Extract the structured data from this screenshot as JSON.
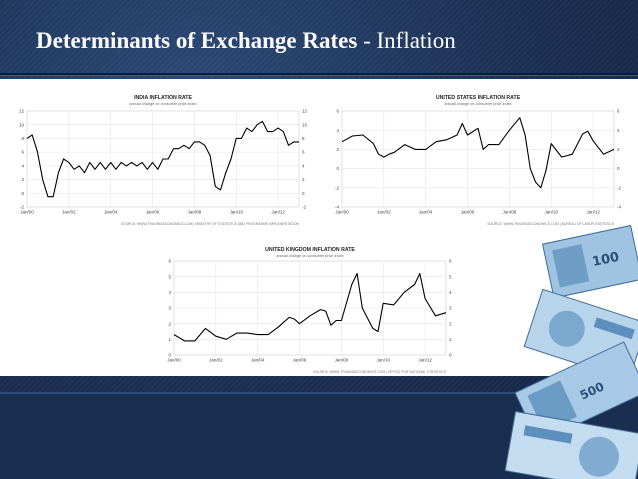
{
  "slide": {
    "title_main": "Determinants of Exchange Rates",
    "title_sep": " - ",
    "title_sub": "Inflation"
  },
  "colors": {
    "background": "#1b2f52",
    "title": "#ffffff",
    "line": "#000000",
    "grid": "#dddddd"
  },
  "decoration": {
    "image": "banknotes-image"
  },
  "chart_data": [
    {
      "type": "line",
      "title": "INDIA INFLATION RATE",
      "subtitle": "annual change on consumer price index",
      "source": "SOURCE: WWW.TRADINGECONOMICS.COM | MINISTRY OF STATISTICS AND PROGRAMME IMPLEMENTATION",
      "ylim": [
        -2,
        12
      ],
      "yticks": [
        "12",
        "10",
        "8",
        "6",
        "4",
        "2",
        "0",
        "-2"
      ],
      "xticks": [
        "Jan/00",
        "Jan/02",
        "Jan/04",
        "Jan/06",
        "Jan/08",
        "Jan/10",
        "Jan/12"
      ],
      "grid": true,
      "series": [
        {
          "x": [
            2000.0,
            2000.25,
            2000.5,
            2000.75,
            2001.0,
            2001.25,
            2001.5,
            2001.75,
            2002.0,
            2002.25,
            2002.5,
            2002.75,
            2003.0,
            2003.25,
            2003.5,
            2003.75,
            2004.0,
            2004.25,
            2004.5,
            2004.75,
            2005.0,
            2005.25,
            2005.5,
            2005.75,
            2006.0,
            2006.25,
            2006.5,
            2006.75,
            2007.0,
            2007.25,
            2007.5,
            2007.75,
            2008.0,
            2008.25,
            2008.5,
            2008.75,
            2009.0,
            2009.25,
            2009.5,
            2009.75,
            2010.0,
            2010.25,
            2010.5,
            2010.75,
            2011.0,
            2011.25,
            2011.5,
            2011.75,
            2012.0,
            2012.25,
            2012.5,
            2012.75,
            2013.0
          ],
          "values": [
            8,
            8.5,
            6,
            2,
            -0.5,
            -0.5,
            3,
            5,
            4.5,
            3.5,
            4,
            3,
            4.5,
            3.5,
            4.5,
            3.5,
            4.5,
            3.5,
            4.5,
            4,
            4.5,
            4,
            4.5,
            3.5,
            4.5,
            3.5,
            5,
            5,
            6.5,
            6.5,
            7,
            6.5,
            7.5,
            7.5,
            7,
            5.5,
            1,
            0.5,
            3,
            5,
            8,
            8,
            9.5,
            9,
            10,
            10.5,
            9,
            9,
            9.5,
            9,
            7,
            7.5,
            7.5
          ]
        }
      ]
    },
    {
      "type": "line",
      "title": "UNITED STATES INFLATION RATE",
      "subtitle": "annual change on consumer price index",
      "source": "SOURCE: WWW.TRADINGECONOMICS.COM | BUREAU OF LABOR STATISTICS",
      "ylim": [
        -4,
        6
      ],
      "yticks": [
        "6",
        "4",
        "2",
        "0",
        "-2",
        "-4"
      ],
      "xticks": [
        "Jan/00",
        "Jan/02",
        "Jan/04",
        "Jan/06",
        "Jan/08",
        "Jan/10",
        "Jan/12"
      ],
      "grid": true,
      "series": [
        {
          "x": [
            2000.0,
            2000.5,
            2001.0,
            2001.5,
            2001.75,
            2002.0,
            2002.25,
            2002.5,
            2003.0,
            2003.5,
            2004.0,
            2004.5,
            2005.0,
            2005.5,
            2005.75,
            2006.0,
            2006.5,
            2006.75,
            2007.0,
            2007.5,
            2008.0,
            2008.5,
            2008.75,
            2009.0,
            2009.25,
            2009.5,
            2009.75,
            2010.0,
            2010.5,
            2011.0,
            2011.5,
            2011.75,
            2012.0,
            2012.5,
            2013.0
          ],
          "values": [
            2.8,
            3.4,
            3.5,
            2.6,
            1.5,
            1.2,
            1.5,
            1.7,
            2.5,
            2,
            2,
            2.8,
            3,
            3.5,
            4.7,
            3.5,
            4.2,
            2,
            2.5,
            2.5,
            4,
            5.3,
            3.5,
            0,
            -1.4,
            -2,
            -0.2,
            2.6,
            1.2,
            1.5,
            3.6,
            3.9,
            2.9,
            1.5,
            2
          ]
        }
      ]
    },
    {
      "type": "line",
      "title": "UNITED KINGDOM INFLATION RATE",
      "subtitle": "annual change on consumer price index",
      "source": "SOURCE: WWW.TRADINGECONOMICS.COM | OFFICE FOR NATIONAL STATISTICS",
      "ylim": [
        0,
        6
      ],
      "yticks": [
        "6",
        "5",
        "4",
        "3",
        "2",
        "1",
        "0"
      ],
      "xticks": [
        "Jan/00",
        "Jan/02",
        "Jan/04",
        "Jan/06",
        "Jan/08",
        "Jan/10",
        "Jan/12"
      ],
      "grid": true,
      "series": [
        {
          "x": [
            2000.0,
            2000.5,
            2001.0,
            2001.5,
            2002.0,
            2002.5,
            2003.0,
            2003.5,
            2004.0,
            2004.5,
            2005.0,
            2005.5,
            2005.75,
            2006.0,
            2006.5,
            2007.0,
            2007.25,
            2007.5,
            2007.75,
            2008.0,
            2008.5,
            2008.75,
            2009.0,
            2009.5,
            2009.75,
            2010.0,
            2010.5,
            2011.0,
            2011.5,
            2011.75,
            2012.0,
            2012.5,
            2013.0
          ],
          "values": [
            1.3,
            0.9,
            0.9,
            1.7,
            1.2,
            1,
            1.4,
            1.4,
            1.3,
            1.3,
            1.8,
            2.4,
            2.3,
            2,
            2.5,
            2.9,
            2.8,
            1.9,
            2.2,
            2.2,
            4.5,
            5.2,
            3,
            1.7,
            1.5,
            3.3,
            3.2,
            4,
            4.5,
            5.2,
            3.6,
            2.5,
            2.7
          ]
        }
      ]
    }
  ]
}
